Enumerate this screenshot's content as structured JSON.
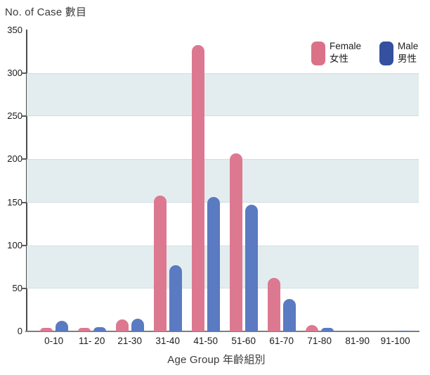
{
  "chart_data": {
    "type": "bar",
    "title": "No. of Case 數目",
    "xlabel": "Age Group 年齡組別",
    "ylabel": "No. of Case 數目",
    "ylim": [
      0,
      350
    ],
    "yticks": [
      0,
      50,
      100,
      150,
      200,
      250,
      300,
      350
    ],
    "grid_bands": [
      [
        50,
        100
      ],
      [
        150,
        200
      ],
      [
        250,
        300
      ]
    ],
    "band_color": "#e3edef",
    "legend_position": "top-right",
    "categories": [
      "0-10",
      "11- 20",
      "21-30",
      "31-40",
      "41-50",
      "51-60",
      "61-70",
      "71-80",
      "81-90",
      "91-100"
    ],
    "series": [
      {
        "name": "Female 女性",
        "label_en": "Female",
        "label_zh": "女性",
        "color": "#dc7990",
        "legend_color": "#db7187",
        "values": [
          4,
          4,
          14,
          158,
          333,
          207,
          62,
          7,
          0,
          0
        ]
      },
      {
        "name": "Male 男性",
        "label_en": "Male",
        "label_zh": "男性",
        "color": "#5a7ac1",
        "legend_color": "#34509e",
        "values": [
          12,
          5,
          15,
          77,
          156,
          147,
          38,
          4,
          0,
          1
        ]
      }
    ],
    "colors": {
      "axis_y": "#4d4d4d",
      "axis_x": "#7e7e7e",
      "band_edge_line": "#cfdfe2",
      "text": "#1c1c1c"
    }
  }
}
